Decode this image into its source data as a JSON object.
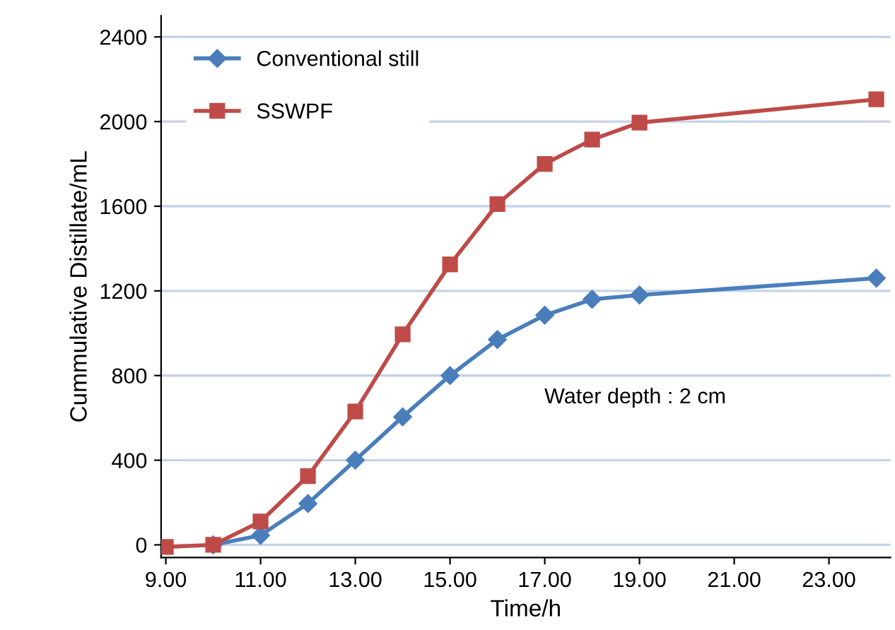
{
  "chart_data": {
    "type": "line",
    "xlabel": "Time/h",
    "ylabel": "Cummulative Distillate/mL",
    "x": [
      9,
      10,
      11,
      12,
      13,
      14,
      15,
      16,
      17,
      18,
      19,
      24
    ],
    "series": [
      {
        "name": "Conventional still",
        "color": "#4a7ebb",
        "marker": "diamond",
        "values": [
          null,
          0,
          45,
          195,
          400,
          605,
          800,
          970,
          1085,
          1160,
          1180,
          1260
        ]
      },
      {
        "name": "SSWPF",
        "color": "#be4b48",
        "marker": "square",
        "values": [
          -10,
          0,
          110,
          325,
          630,
          995,
          1325,
          1610,
          1800,
          1915,
          1995,
          2105
        ]
      }
    ],
    "xlim": [
      8.9,
      24.3
    ],
    "ylim": [
      -60,
      2500
    ],
    "xticks": [
      {
        "value": 9,
        "label": "9.00"
      },
      {
        "value": 11,
        "label": "11.00"
      },
      {
        "value": 13,
        "label": "13.00"
      },
      {
        "value": 15,
        "label": "15.00"
      },
      {
        "value": 17,
        "label": "17.00"
      },
      {
        "value": 19,
        "label": "19.00"
      },
      {
        "value": 21,
        "label": "21.00"
      },
      {
        "value": 23,
        "label": "23.00"
      }
    ],
    "yticks": [
      0,
      400,
      800,
      1200,
      1600,
      2000,
      2400
    ],
    "grid": "y",
    "legend": "top left",
    "line_style": "solid",
    "annotations": [
      "Water depth : 2 cm"
    ]
  }
}
